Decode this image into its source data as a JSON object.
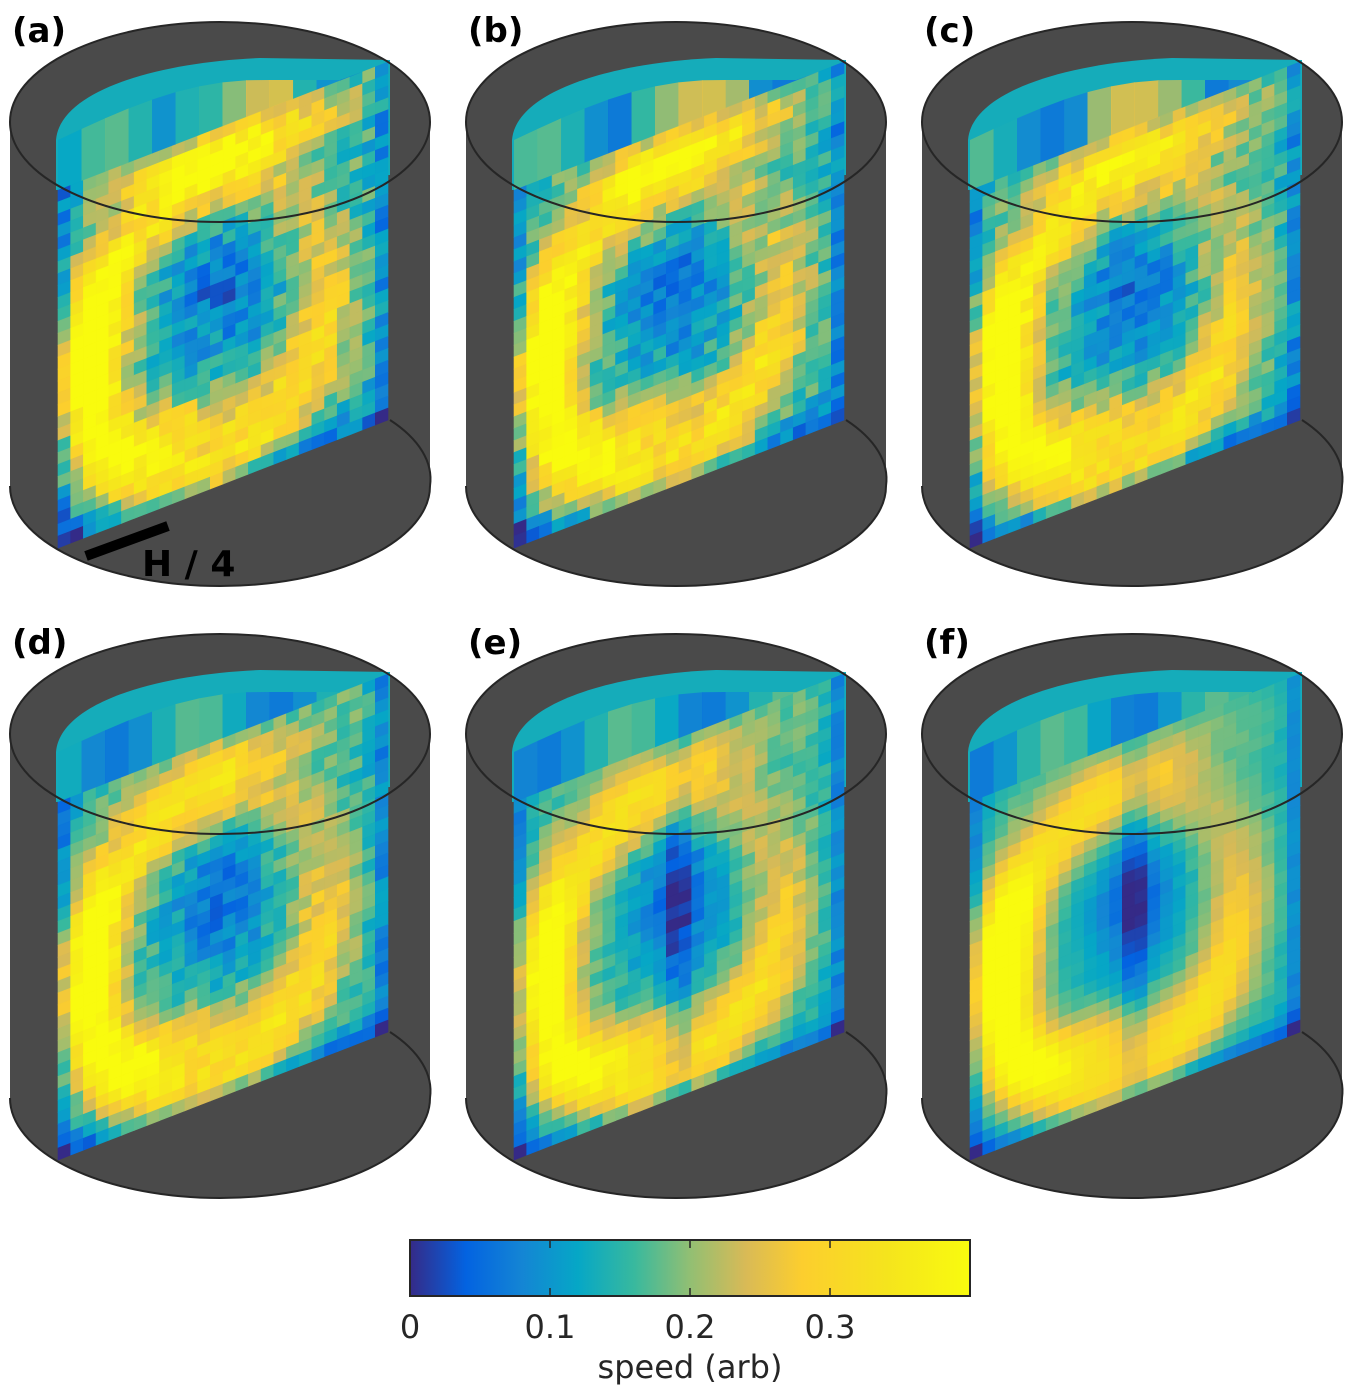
{
  "chart_data": {
    "type": "heatmap",
    "panels": [
      {
        "label": "(a)"
      },
      {
        "label": "(b)"
      },
      {
        "label": "(c)"
      },
      {
        "label": "(d)"
      },
      {
        "label": "(e)"
      },
      {
        "label": "(f)"
      }
    ],
    "scale_bar_label": "H / 4",
    "colorbar": {
      "label": "speed (arb)",
      "range": [
        0,
        0.4
      ],
      "ticks": [
        0,
        0.1,
        0.2,
        0.3
      ],
      "tick_labels": [
        "0",
        "0.1",
        "0.2",
        "0.3"
      ],
      "colormap": "parula"
    },
    "colors": {
      "cylinder_wall": "#4a4a4a",
      "outline": "#262626"
    }
  }
}
